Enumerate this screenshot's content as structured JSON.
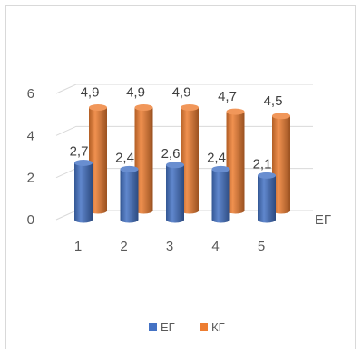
{
  "chart_data": {
    "type": "bar",
    "style": "3d-cylinder",
    "title": "",
    "categories": [
      "1",
      "2",
      "3",
      "4",
      "5"
    ],
    "series": [
      {
        "name": "ЕГ",
        "values": [
          2.7,
          2.4,
          2.6,
          2.4,
          2.1
        ],
        "labels": [
          "2,7",
          "2,4",
          "2,6",
          "2,4",
          "2,1"
        ],
        "color": "#4472C4"
      },
      {
        "name": "КГ",
        "values": [
          4.9,
          4.9,
          4.9,
          4.7,
          4.5
        ],
        "labels": [
          "4,9",
          "4,9",
          "4,9",
          "4,7",
          "4,5"
        ],
        "color": "#ED7D31"
      }
    ],
    "ylim": [
      0,
      6
    ],
    "yticks": [
      0,
      2,
      4,
      6
    ],
    "ytick_labels": [
      "0",
      "2",
      "4",
      "6"
    ],
    "depth_axis_label": "ЕГ",
    "grid": true,
    "legend": "bottom"
  }
}
